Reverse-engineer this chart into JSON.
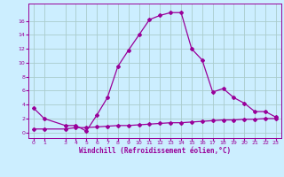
{
  "xlabel": "Windchill (Refroidissement éolien,°C)",
  "bg_color": "#cceeff",
  "line_color": "#990099",
  "grid_color": "#aacccc",
  "ylim": [
    -0.8,
    18.5
  ],
  "xlim": [
    -0.5,
    23.5
  ],
  "yticks": [
    0,
    2,
    4,
    6,
    8,
    10,
    12,
    14,
    16
  ],
  "xticks": [
    0,
    1,
    3,
    4,
    5,
    6,
    7,
    8,
    9,
    10,
    11,
    12,
    13,
    14,
    15,
    16,
    17,
    18,
    19,
    20,
    21,
    22,
    23
  ],
  "line1_x": [
    0,
    1,
    3,
    4,
    5,
    6,
    7,
    8,
    9,
    10,
    11,
    12,
    13,
    14,
    15,
    16,
    17,
    18,
    19,
    20,
    21,
    22,
    23
  ],
  "line1_y": [
    3.5,
    2.0,
    1.0,
    1.0,
    0.2,
    2.5,
    5.0,
    9.5,
    11.8,
    14.0,
    16.2,
    16.8,
    17.2,
    17.2,
    12.0,
    10.4,
    5.8,
    6.3,
    5.0,
    4.2,
    3.0,
    3.0,
    2.2
  ],
  "line2_x": [
    0,
    1,
    3,
    4,
    5,
    6,
    7,
    8,
    9,
    10,
    11,
    12,
    13,
    14,
    15,
    16,
    17,
    18,
    19,
    20,
    21,
    22,
    23
  ],
  "line2_y": [
    0.5,
    0.5,
    0.5,
    0.7,
    0.7,
    0.8,
    0.9,
    1.0,
    1.0,
    1.1,
    1.2,
    1.3,
    1.4,
    1.4,
    1.5,
    1.6,
    1.7,
    1.8,
    1.8,
    1.9,
    1.9,
    2.0,
    2.0
  ]
}
